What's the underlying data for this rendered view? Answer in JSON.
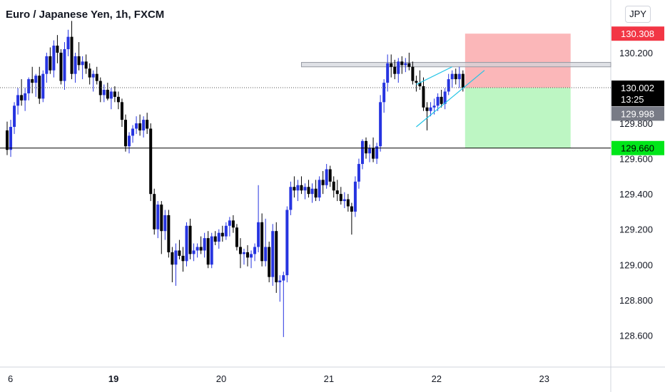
{
  "chart_data": {
    "type": "candlestick",
    "title": "Euro / Japanese Yen, 1h, FXCM",
    "currency_label": "JPY",
    "ylim": [
      128.42,
      130.45
    ],
    "y_ticks": [
      "128.600",
      "128.800",
      "129.000",
      "129.200",
      "129.400",
      "129.600",
      "129.800",
      "130.000",
      "130.200"
    ],
    "y_tick_values": [
      128.6,
      128.8,
      129.0,
      129.2,
      129.4,
      129.6,
      129.8,
      130.0,
      130.2
    ],
    "x_ticks": [
      "6",
      "19",
      "20",
      "21",
      "22",
      "23"
    ],
    "x_tick_index": [
      1,
      29,
      59,
      89,
      119,
      149
    ],
    "candles": [
      [
        129.76,
        129.81,
        129.62,
        129.65
      ],
      [
        129.65,
        129.82,
        129.61,
        129.78
      ],
      [
        129.78,
        129.92,
        129.74,
        129.9
      ],
      [
        129.9,
        130.0,
        129.85,
        129.96
      ],
      [
        129.96,
        130.05,
        129.9,
        129.93
      ],
      [
        129.93,
        130.0,
        129.87,
        129.97
      ],
      [
        129.97,
        130.06,
        129.93,
        130.05
      ],
      [
        130.05,
        130.12,
        129.97,
        130.03
      ],
      [
        130.03,
        130.08,
        129.95,
        130.07
      ],
      [
        130.07,
        130.12,
        129.91,
        129.94
      ],
      [
        129.94,
        130.1,
        129.92,
        130.08
      ],
      [
        130.08,
        130.2,
        130.03,
        130.18
      ],
      [
        130.18,
        130.23,
        130.08,
        130.1
      ],
      [
        130.1,
        130.27,
        130.06,
        130.24
      ],
      [
        130.24,
        130.3,
        130.14,
        130.2
      ],
      [
        130.2,
        130.22,
        130.02,
        130.04
      ],
      [
        130.04,
        130.26,
        129.99,
        130.22
      ],
      [
        130.22,
        130.33,
        130.18,
        130.29
      ],
      [
        130.29,
        130.38,
        130.05,
        130.08
      ],
      [
        130.08,
        130.2,
        130.03,
        130.18
      ],
      [
        130.18,
        130.26,
        130.1,
        130.13
      ],
      [
        130.13,
        130.18,
        130.05,
        130.15
      ],
      [
        130.15,
        130.19,
        130.08,
        130.11
      ],
      [
        130.11,
        130.14,
        130.02,
        130.06
      ],
      [
        130.06,
        130.1,
        129.98,
        130.08
      ],
      [
        130.08,
        130.12,
        130.02,
        130.04
      ],
      [
        130.04,
        130.06,
        129.92,
        129.96
      ],
      [
        129.96,
        130.02,
        129.92,
        129.99
      ],
      [
        129.99,
        130.03,
        129.93,
        129.94
      ],
      [
        129.94,
        130.0,
        129.88,
        129.98
      ],
      [
        129.98,
        130.01,
        129.92,
        129.95
      ],
      [
        129.95,
        129.98,
        129.88,
        129.92
      ],
      [
        129.92,
        129.94,
        129.78,
        129.82
      ],
      [
        129.82,
        129.85,
        129.64,
        129.67
      ],
      [
        129.67,
        129.75,
        129.63,
        129.73
      ],
      [
        129.73,
        129.79,
        129.69,
        129.77
      ],
      [
        129.77,
        129.84,
        129.74,
        129.8
      ],
      [
        129.8,
        129.85,
        129.73,
        129.76
      ],
      [
        129.76,
        129.84,
        129.72,
        129.82
      ],
      [
        129.82,
        129.86,
        129.74,
        129.77
      ],
      [
        129.77,
        129.8,
        129.36,
        129.4
      ],
      [
        129.4,
        129.43,
        129.17,
        129.2
      ],
      [
        129.2,
        129.36,
        129.15,
        129.34
      ],
      [
        129.34,
        129.36,
        129.06,
        129.19
      ],
      [
        129.19,
        129.31,
        129.14,
        129.28
      ],
      [
        129.28,
        129.31,
        129.04,
        129.07
      ],
      [
        129.07,
        129.1,
        128.9,
        129.0
      ],
      [
        129.0,
        129.12,
        128.88,
        129.08
      ],
      [
        129.08,
        129.14,
        129.03,
        129.05
      ],
      [
        129.05,
        129.1,
        128.96,
        129.02
      ],
      [
        129.02,
        129.24,
        128.99,
        129.22
      ],
      [
        129.22,
        129.26,
        129.03,
        129.06
      ],
      [
        129.06,
        129.12,
        129.02,
        129.08
      ],
      [
        129.08,
        129.12,
        129.04,
        129.1
      ],
      [
        129.1,
        129.16,
        129.06,
        129.08
      ],
      [
        129.08,
        129.18,
        129.04,
        129.15
      ],
      [
        129.15,
        129.19,
        128.98,
        129.0
      ],
      [
        129.0,
        129.18,
        128.98,
        129.16
      ],
      [
        129.16,
        129.19,
        129.11,
        129.13
      ],
      [
        129.13,
        129.2,
        129.09,
        129.18
      ],
      [
        129.18,
        129.22,
        129.13,
        129.16
      ],
      [
        129.16,
        129.24,
        129.14,
        129.22
      ],
      [
        129.22,
        129.27,
        129.16,
        129.25
      ],
      [
        129.25,
        129.28,
        129.18,
        129.21
      ],
      [
        129.21,
        129.23,
        129.08,
        129.1
      ],
      [
        129.1,
        129.15,
        128.98,
        129.06
      ],
      [
        129.06,
        129.09,
        129.0,
        129.07
      ],
      [
        129.07,
        129.11,
        128.99,
        129.04
      ],
      [
        129.04,
        129.08,
        128.98,
        129.06
      ],
      [
        129.06,
        129.12,
        129.02,
        129.1
      ],
      [
        129.1,
        129.45,
        129.07,
        129.24
      ],
      [
        129.24,
        129.29,
        128.99,
        129.02
      ],
      [
        129.02,
        129.26,
        128.99,
        129.1
      ],
      [
        129.1,
        129.13,
        128.9,
        128.93
      ],
      [
        128.93,
        129.23,
        128.88,
        129.19
      ],
      [
        129.19,
        129.24,
        128.84,
        128.9
      ],
      [
        128.9,
        128.94,
        128.79,
        128.91
      ],
      [
        128.91,
        128.96,
        128.59,
        128.94
      ],
      [
        128.94,
        129.33,
        128.9,
        129.31
      ],
      [
        129.31,
        129.47,
        129.28,
        129.44
      ],
      [
        129.44,
        129.5,
        129.38,
        129.42
      ],
      [
        129.42,
        129.48,
        129.36,
        129.45
      ],
      [
        129.45,
        129.5,
        129.4,
        129.42
      ],
      [
        129.42,
        129.46,
        129.37,
        129.44
      ],
      [
        129.44,
        129.48,
        129.38,
        129.4
      ],
      [
        129.4,
        129.46,
        129.35,
        129.43
      ],
      [
        129.43,
        129.48,
        129.36,
        129.38
      ],
      [
        129.38,
        129.5,
        129.36,
        129.48
      ],
      [
        129.48,
        129.53,
        129.4,
        129.45
      ],
      [
        129.45,
        129.57,
        129.43,
        129.54
      ],
      [
        129.54,
        129.56,
        129.44,
        129.47
      ],
      [
        129.47,
        129.5,
        129.38,
        129.42
      ],
      [
        129.42,
        129.48,
        129.36,
        129.4
      ],
      [
        129.4,
        129.44,
        129.34,
        129.36
      ],
      [
        129.36,
        129.41,
        129.32,
        129.37
      ],
      [
        129.37,
        129.4,
        129.3,
        129.33
      ],
      [
        129.33,
        129.35,
        129.17,
        129.3
      ],
      [
        129.3,
        129.5,
        129.27,
        129.47
      ],
      [
        129.47,
        129.6,
        129.43,
        129.57
      ],
      [
        129.57,
        129.71,
        129.54,
        129.7
      ],
      [
        129.7,
        129.72,
        129.6,
        129.63
      ],
      [
        129.63,
        129.68,
        129.58,
        129.66
      ],
      [
        129.66,
        129.72,
        129.58,
        129.6
      ],
      [
        129.6,
        129.69,
        129.57,
        129.67
      ],
      [
        129.67,
        129.96,
        129.64,
        129.92
      ],
      [
        129.92,
        130.05,
        129.86,
        130.03
      ],
      [
        130.03,
        130.19,
        129.98,
        130.14
      ],
      [
        130.14,
        130.19,
        130.06,
        130.12
      ],
      [
        130.12,
        130.16,
        130.05,
        130.08
      ],
      [
        130.08,
        130.17,
        130.03,
        130.15
      ],
      [
        130.15,
        130.18,
        130.08,
        130.13
      ],
      [
        130.13,
        130.17,
        130.09,
        130.14
      ],
      [
        130.14,
        130.2,
        130.1,
        130.12
      ],
      [
        130.12,
        130.15,
        130.02,
        130.04
      ],
      [
        130.04,
        130.07,
        129.98,
        130.03
      ],
      [
        130.03,
        130.1,
        129.99,
        130.01
      ],
      [
        130.01,
        130.06,
        129.87,
        129.89
      ],
      [
        129.89,
        129.92,
        129.76,
        129.87
      ],
      [
        129.87,
        129.92,
        129.84,
        129.89
      ],
      [
        129.89,
        129.94,
        129.85,
        129.9
      ],
      [
        129.9,
        129.97,
        129.87,
        129.95
      ],
      [
        129.95,
        129.99,
        129.89,
        129.91
      ],
      [
        129.91,
        130.0,
        129.88,
        129.98
      ],
      [
        129.98,
        130.08,
        129.96,
        130.05
      ],
      [
        130.05,
        130.1,
        130.0,
        130.08
      ],
      [
        130.08,
        130.11,
        130.02,
        130.05
      ],
      [
        130.05,
        130.12,
        130.0,
        130.08
      ],
      [
        130.08,
        130.1,
        129.98,
        130.0
      ]
    ],
    "up_color": "#2634e0",
    "down_color": "#000000",
    "zone": {
      "resistance_low": 130.12,
      "resistance_high": 130.145
    },
    "support_line": 129.66,
    "position": {
      "entry": 130.002,
      "stop": 130.308,
      "target": 129.66
    },
    "channel": {
      "upper": [
        [
          114,
          130.02
        ],
        [
          124,
          130.12
        ]
      ],
      "lower": [
        [
          114,
          129.78
        ],
        [
          133,
          130.1
        ]
      ]
    },
    "price_labels": {
      "stop": {
        "value": "130.308",
        "color": "#f23645"
      },
      "current": {
        "value": "130.002",
        "countdown": "13:25",
        "color": "#000000"
      },
      "bid": {
        "value": "129.998",
        "color": "#787b86"
      },
      "target": {
        "value": "129.660",
        "color": "#00e619"
      }
    }
  }
}
